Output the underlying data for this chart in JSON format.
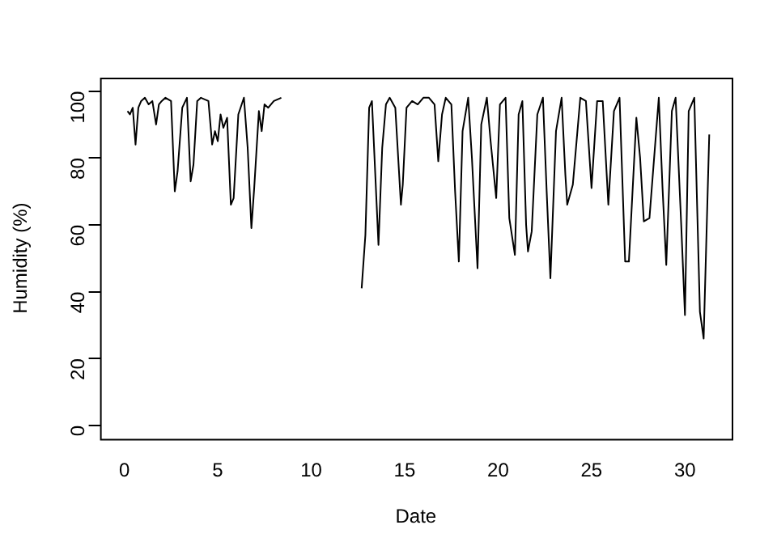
{
  "chart_data": {
    "type": "line",
    "xlabel": "Date",
    "ylabel": "Humidity (%)",
    "xlim": [
      -1.3,
      32.5
    ],
    "ylim": [
      -4,
      104
    ],
    "xticks": [
      0,
      5,
      10,
      15,
      20,
      25,
      30
    ],
    "yticks": [
      0,
      20,
      40,
      60,
      80,
      100
    ],
    "grid": false,
    "legend": false,
    "marker": "none",
    "line_style": "solid",
    "series": [
      {
        "color": "#000000",
        "x": [
          0.17,
          0.3,
          0.45,
          0.6,
          0.75,
          0.9,
          1.1,
          1.3,
          1.5,
          1.7,
          1.85,
          2.0,
          2.2,
          2.5,
          2.7,
          2.85,
          3.1,
          3.35,
          3.55,
          3.7,
          3.9,
          4.1,
          4.5,
          4.7,
          4.85,
          5.0,
          5.15,
          5.3,
          5.5,
          5.7,
          5.85,
          6.1,
          6.4,
          6.6,
          6.8,
          6.95,
          7.2,
          7.35,
          7.5,
          7.7,
          8.0,
          8.4,
          10.5,
          12.7,
          12.9,
          13.1,
          13.25,
          13.6,
          13.8,
          14.0,
          14.2,
          14.5,
          14.8,
          14.9,
          15.1,
          15.4,
          15.7,
          16.0,
          16.3,
          16.6,
          16.8,
          17.0,
          17.2,
          17.5,
          17.7,
          17.9,
          18.1,
          18.4,
          18.6,
          18.9,
          19.1,
          19.4,
          19.6,
          19.9,
          20.1,
          20.4,
          20.6,
          20.9,
          21.1,
          21.3,
          21.5,
          21.6,
          21.8,
          22.1,
          22.4,
          22.6,
          22.8,
          23.1,
          23.4,
          23.6,
          23.7,
          24.0,
          24.4,
          24.7,
          25.0,
          25.3,
          25.6,
          25.9,
          26.2,
          26.5,
          26.8,
          27.0,
          27.4,
          27.6,
          27.8,
          28.1,
          28.6,
          28.8,
          29.0,
          29.3,
          29.5,
          29.8,
          30.0,
          30.2,
          30.5,
          30.8,
          31.0,
          31.3
        ],
        "values": [
          94,
          93,
          95,
          84,
          95,
          97,
          98,
          96,
          97,
          90,
          96,
          97,
          98,
          97,
          70,
          76,
          95,
          98,
          73,
          78,
          97,
          98,
          97,
          84,
          88,
          85,
          93,
          89,
          92,
          66,
          68,
          93,
          98,
          83,
          59,
          71,
          94,
          88,
          96,
          95,
          97,
          98,
          null,
          41,
          57,
          95,
          97,
          54,
          83,
          96,
          98,
          95,
          66,
          72,
          95,
          97,
          96,
          98,
          98,
          96,
          79,
          93,
          98,
          96,
          70,
          49,
          88,
          98,
          80,
          47,
          90,
          98,
          85,
          68,
          96,
          98,
          62,
          51,
          93,
          97,
          60,
          52,
          58,
          93,
          98,
          70,
          44,
          88,
          98,
          75,
          66,
          72,
          98,
          97,
          71,
          97,
          97,
          66,
          94,
          98,
          49,
          49,
          92,
          80,
          61,
          62,
          98,
          71,
          48,
          94,
          98,
          60,
          33,
          94,
          98,
          34,
          26,
          87
        ]
      }
    ]
  }
}
